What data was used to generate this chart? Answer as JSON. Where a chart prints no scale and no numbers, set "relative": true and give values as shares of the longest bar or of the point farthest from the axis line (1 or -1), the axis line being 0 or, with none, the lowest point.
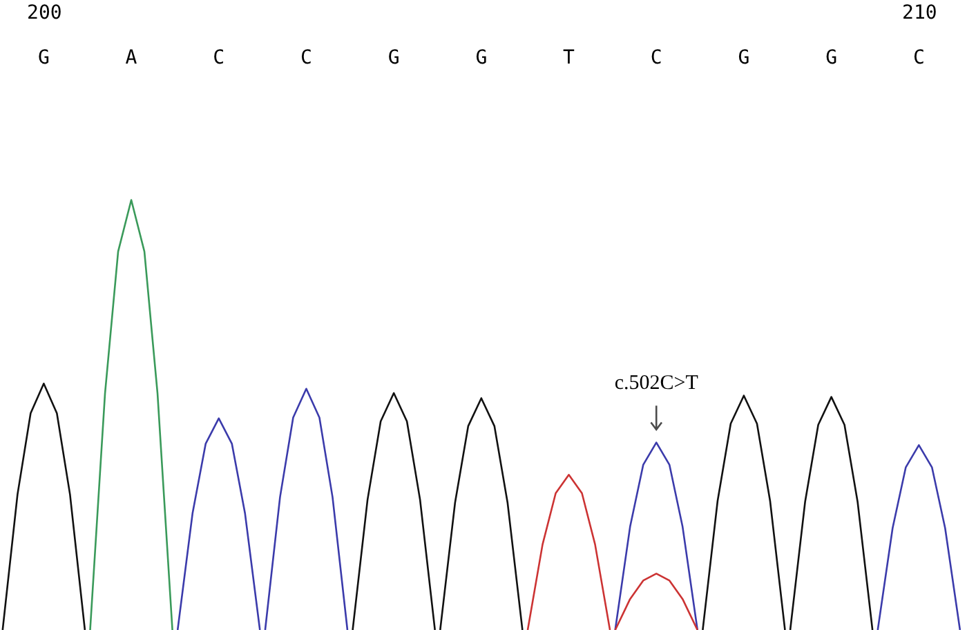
{
  "chart_data": {
    "type": "line",
    "relative": true,
    "grid": false,
    "legend": false,
    "marker": "none",
    "line_style": "solid",
    "xlim": [
      199.5,
      210.55
    ],
    "xticks": [
      200,
      210
    ],
    "annotations": [
      "G",
      "A",
      "C",
      "C",
      "G",
      "G",
      "T",
      "C",
      "G",
      "G",
      "C",
      {
        "text": "c.502C>T",
        "x": 207,
        "y": 0.436
      }
    ],
    "series": [
      {
        "color": "#111111",
        "x": [
          199.53,
          199.7,
          199.85,
          200,
          200.15,
          200.3,
          200.47
        ],
        "values": [
          0,
          0.315,
          0.504,
          0.573,
          0.504,
          0.315,
          0
        ]
      },
      {
        "color": "#3a9a5a",
        "x": [
          200.53,
          200.7,
          200.85,
          201,
          201.15,
          201.3,
          201.47
        ],
        "values": [
          0,
          0.55,
          0.88,
          1,
          0.88,
          0.55,
          0
        ]
      },
      {
        "color": "#3b3bab",
        "x": [
          201.53,
          201.7,
          201.85,
          202,
          202.15,
          202.3,
          202.47
        ],
        "values": [
          0,
          0.271,
          0.433,
          0.492,
          0.433,
          0.271,
          0
        ]
      },
      {
        "color": "#3b3bab",
        "x": [
          202.53,
          202.7,
          202.85,
          203,
          203.15,
          203.3,
          203.47
        ],
        "values": [
          0,
          0.309,
          0.494,
          0.561,
          0.494,
          0.309,
          0
        ]
      },
      {
        "color": "#111111",
        "x": [
          203.53,
          203.7,
          203.85,
          204,
          204.15,
          204.3,
          204.47
        ],
        "values": [
          0,
          0.303,
          0.485,
          0.551,
          0.485,
          0.303,
          0
        ]
      },
      {
        "color": "#111111",
        "x": [
          204.53,
          204.7,
          204.85,
          205,
          205.15,
          205.3,
          205.47
        ],
        "values": [
          0,
          0.296,
          0.474,
          0.539,
          0.474,
          0.296,
          0
        ]
      },
      {
        "color": "#cc3333",
        "x": [
          205.53,
          205.7,
          205.85,
          206,
          206.15,
          206.3,
          206.47
        ],
        "values": [
          0,
          0.199,
          0.318,
          0.361,
          0.318,
          0.199,
          0
        ]
      },
      {
        "color": "#3b3bab",
        "x": [
          206.53,
          206.7,
          206.85,
          207,
          207.15,
          207.3,
          207.47
        ],
        "values": [
          0,
          0.24,
          0.384,
          0.436,
          0.384,
          0.24,
          0
        ]
      },
      {
        "color": "#cc3333",
        "x": [
          206.53,
          206.7,
          206.85,
          207,
          207.15,
          207.3,
          207.47
        ],
        "values": [
          0,
          0.072,
          0.115,
          0.131,
          0.115,
          0.072,
          0
        ]
      },
      {
        "color": "#111111",
        "x": [
          207.53,
          207.7,
          207.85,
          208,
          208.15,
          208.3,
          208.47
        ],
        "values": [
          0,
          0.3,
          0.48,
          0.545,
          0.48,
          0.3,
          0
        ]
      },
      {
        "color": "#111111",
        "x": [
          208.53,
          208.7,
          208.85,
          209,
          209.15,
          209.3,
          209.47
        ],
        "values": [
          0,
          0.298,
          0.477,
          0.542,
          0.477,
          0.298,
          0
        ]
      },
      {
        "color": "#3b3bab",
        "x": [
          209.53,
          209.7,
          209.85,
          210,
          210.15,
          210.3,
          210.47
        ],
        "values": [
          0,
          0.237,
          0.378,
          0.43,
          0.378,
          0.237,
          0
        ]
      }
    ]
  }
}
